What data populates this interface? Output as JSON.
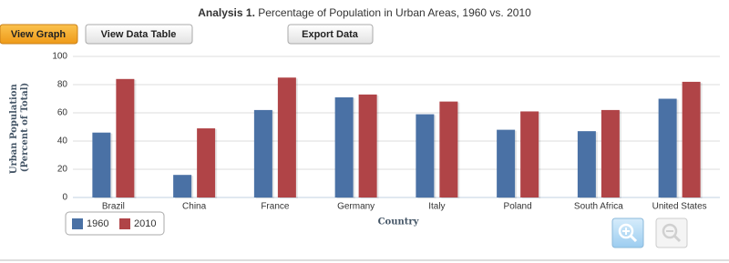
{
  "ui": {
    "buttons": [
      "View Graph",
      "View Data Table",
      "Export Data"
    ]
  },
  "chart_data": {
    "type": "bar",
    "title_label": "Analysis 1.",
    "title": "Percentage of Population in Urban Areas, 1960 vs. 2010",
    "xlabel": "Country",
    "ylabel": [
      "Urban Population",
      "(Percent of Total)"
    ],
    "categories": [
      "Brazil",
      "China",
      "France",
      "Germany",
      "Italy",
      "Poland",
      "South Africa",
      "United States"
    ],
    "series": [
      {
        "name": "1960",
        "color": "#4a71a5",
        "values": [
          46,
          16,
          62,
          71,
          59,
          48,
          47,
          70
        ]
      },
      {
        "name": "2010",
        "color": "#b04447",
        "values": [
          84,
          49,
          85,
          73,
          68,
          61,
          62,
          82
        ]
      }
    ],
    "ylim": [
      0,
      100
    ],
    "yticks": [
      0,
      20,
      40,
      60,
      80,
      100
    ],
    "grid": true
  }
}
